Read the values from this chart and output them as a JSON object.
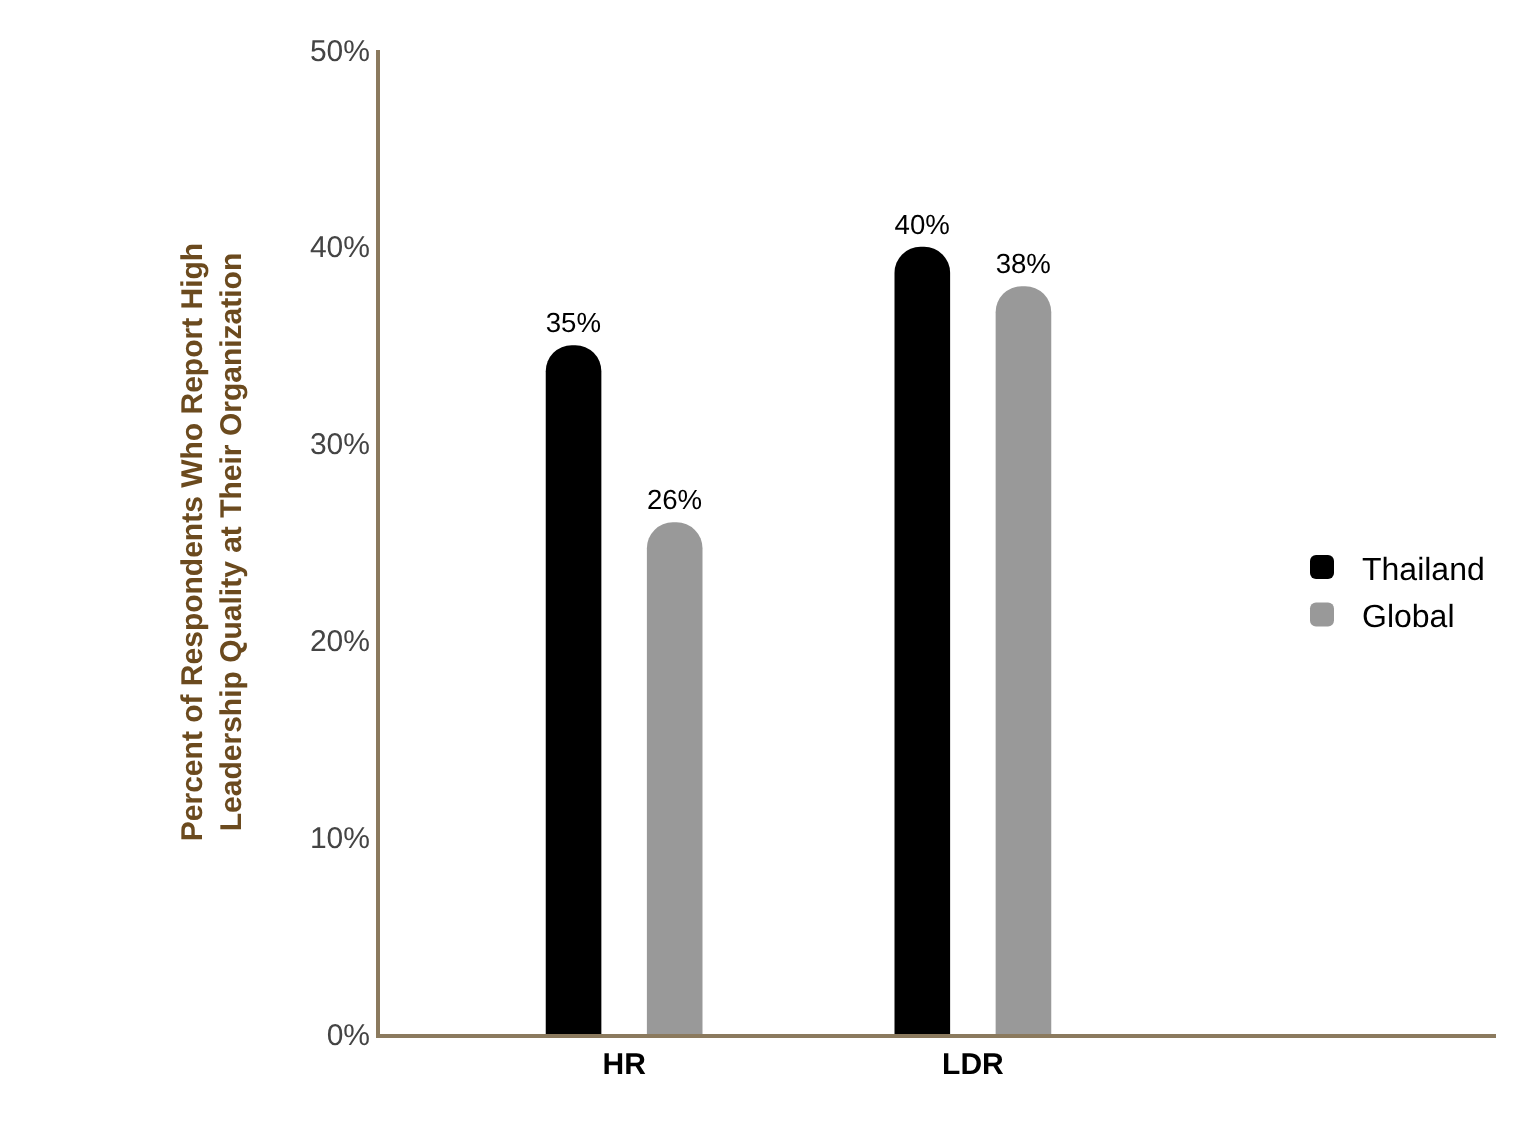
{
  "chart_data": {
    "type": "bar",
    "ylabel": "Percent of Respondents Who Report High\nLeadership Quality at Their Organization",
    "categories": [
      "HR",
      "LDR"
    ],
    "series": [
      {
        "name": "Thailand",
        "color": "#000000",
        "values": [
          35,
          40
        ],
        "value_labels": [
          "35%",
          "40%"
        ]
      },
      {
        "name": "Global",
        "color": "#999999",
        "values": [
          26,
          38
        ],
        "value_labels": [
          "26%",
          "38%"
        ]
      }
    ],
    "ylim": [
      0,
      50
    ],
    "yticks": [
      {
        "value": 0,
        "label": "0%"
      },
      {
        "value": 10,
        "label": "10%"
      },
      {
        "value": 20,
        "label": "20%"
      },
      {
        "value": 30,
        "label": "30%"
      },
      {
        "value": 40,
        "label": "40%"
      },
      {
        "value": 50,
        "label": "50%"
      }
    ],
    "grid": false,
    "legend": "right"
  }
}
